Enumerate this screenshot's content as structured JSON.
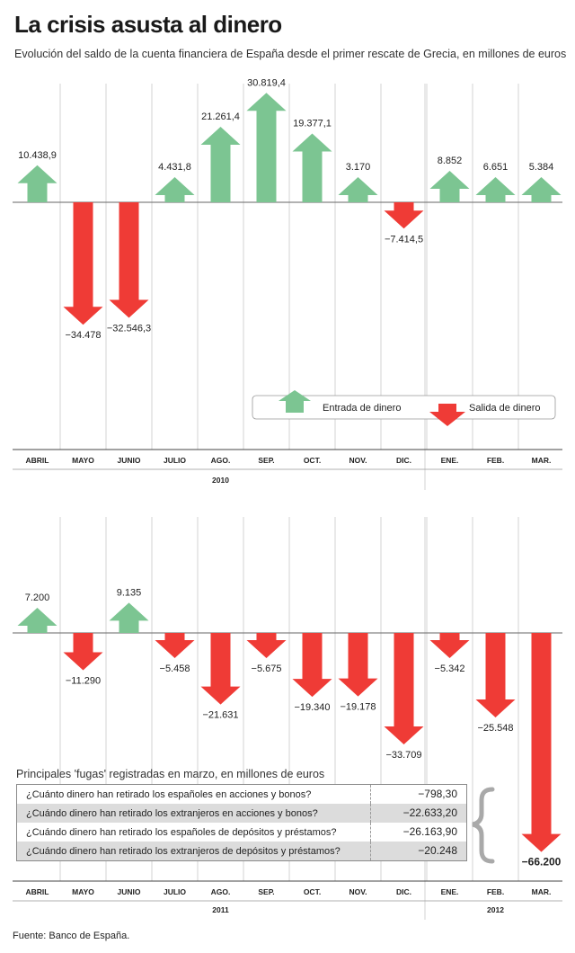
{
  "header": {
    "title": "La crisis asusta al dinero",
    "subtitle": "Evolución del saldo de la cuenta financiera de España desde el primer rescate de Grecia, en millones de euros"
  },
  "legend": {
    "in_label": "Entrada de dinero",
    "out_label": "Salida de dinero"
  },
  "colors": {
    "in": "#7cc592",
    "out": "#ef3b36"
  },
  "chart_data": [
    {
      "type": "bar",
      "categories": [
        "ABRIL",
        "MAYO",
        "JUNIO",
        "JULIO",
        "AGO.",
        "SEP.",
        "OCT.",
        "NOV.",
        "DIC.",
        "ENE.",
        "FEB.",
        "MAR."
      ],
      "values": [
        10438.9,
        -34478,
        -32546.3,
        4431.8,
        21261.4,
        30819.4,
        19377.1,
        3170,
        -7414.5,
        8852,
        6651,
        5384
      ],
      "labels": [
        "10.438,9",
        "−34.478",
        "−32.546,3",
        "4.431,8",
        "21.261,4",
        "30.819,4",
        "19.377,1",
        "3.170",
        "−7.414,5",
        "8.852",
        "6.651",
        "5.384"
      ],
      "years": [
        {
          "label": "2010",
          "from": 0,
          "to": 8
        },
        {
          "label": "",
          "from": 9,
          "to": 11
        }
      ],
      "legend": "bottom-right"
    },
    {
      "type": "bar",
      "categories": [
        "ABRIL",
        "MAYO",
        "JUNIO",
        "JULIO",
        "AGO.",
        "SEP.",
        "OCT.",
        "NOV.",
        "DIC.",
        "ENE.",
        "FEB.",
        "MAR."
      ],
      "values": [
        7200,
        -11290,
        9135,
        -5458,
        -21631,
        -5675,
        -19340,
        -19178,
        -33709,
        -5342,
        -25548,
        -66200
      ],
      "labels": [
        "7.200",
        "−11.290",
        "9.135",
        "−5.458",
        "−21.631",
        "−5.675",
        "−19.340",
        "−19.178",
        "−33.709",
        "−5.342",
        "−25.548",
        "−66.200"
      ],
      "years": [
        {
          "label": "2011",
          "from": 0,
          "to": 8
        },
        {
          "label": "2012",
          "from": 9,
          "to": 11
        }
      ]
    }
  ],
  "fugas": {
    "title": "Principales 'fugas' registradas en marzo, en millones de euros",
    "rows": [
      {
        "question": "¿Cuánto dinero han retirado los españoles en acciones y bonos?",
        "value": "−798,30"
      },
      {
        "question": "¿Cuándo dinero han retirado los extranjeros en acciones y bonos?",
        "value": "−22.633,20"
      },
      {
        "question": "¿Cuándo dinero han retirado los españoles de depósitos y préstamos?",
        "value": "−26.163,90"
      },
      {
        "question": "¿Cuándo dinero han retirado los extranjeros de depósitos y préstamos?",
        "value": "−20.248"
      }
    ]
  },
  "source": "Fuente: Banco de España."
}
